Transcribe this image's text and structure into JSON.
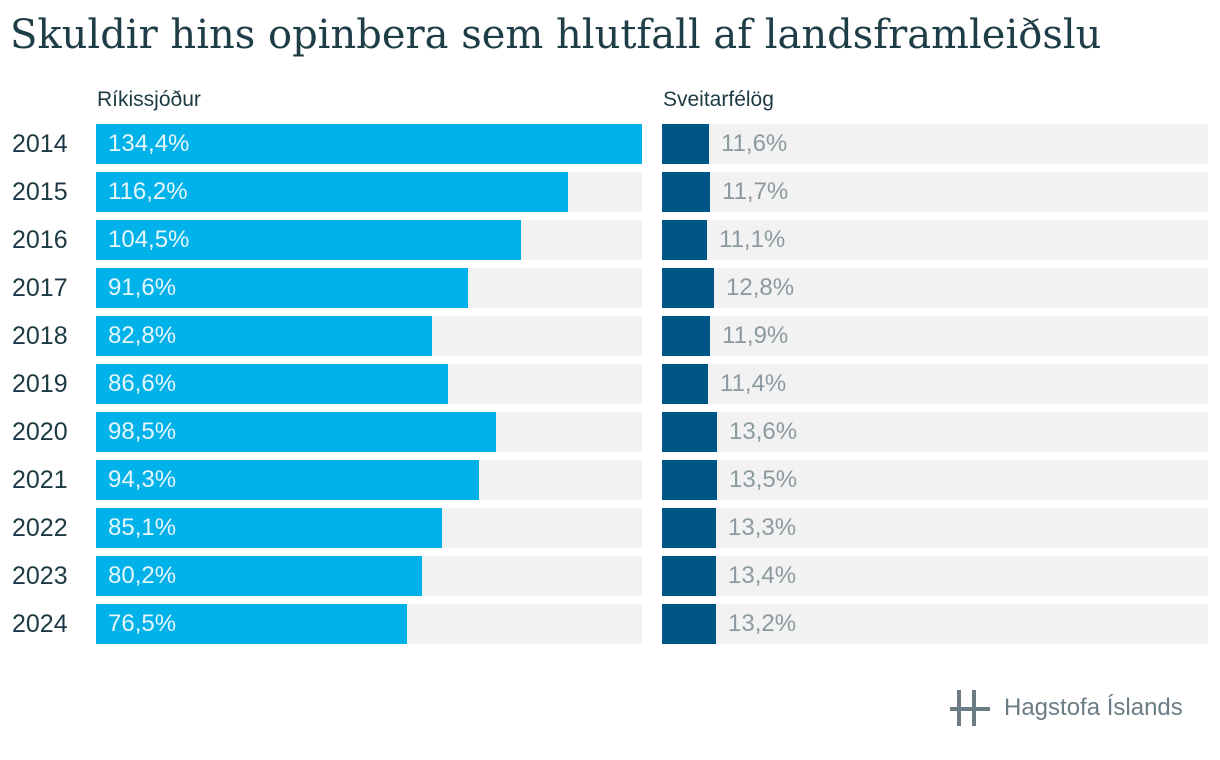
{
  "title": "Skuldir hins opinbera sem hlutfall af landsframleiðslu",
  "brand": "Hagstofa Íslands",
  "colors": {
    "state": "#00b2ea",
    "municipal": "#005587",
    "track": "#f2f2f2"
  },
  "chart_data": {
    "type": "bar",
    "orientation": "horizontal",
    "title": "Skuldir hins opinbera sem hlutfall af landsframleiðslu",
    "categories": [
      "2014",
      "2015",
      "2016",
      "2017",
      "2018",
      "2019",
      "2020",
      "2021",
      "2022",
      "2023",
      "2024"
    ],
    "series": [
      {
        "name": "Ríkissjóður",
        "values": [
          134.4,
          116.2,
          104.5,
          91.6,
          82.8,
          86.6,
          98.5,
          94.3,
          85.1,
          80.2,
          76.5
        ],
        "labels": [
          "134,4%",
          "116,2%",
          "104,5%",
          "91,6%",
          "82,8%",
          "86,6%",
          "98,5%",
          "94,3%",
          "85,1%",
          "80,2%",
          "76,5%"
        ],
        "xlim": [
          0,
          134.4
        ]
      },
      {
        "name": "Sveitarfélög",
        "values": [
          11.6,
          11.7,
          11.1,
          12.8,
          11.9,
          11.4,
          13.6,
          13.5,
          13.3,
          13.4,
          13.2
        ],
        "labels": [
          "11,6%",
          "11,7%",
          "11,1%",
          "12,8%",
          "11,9%",
          "11,4%",
          "13,6%",
          "13,5%",
          "13,3%",
          "13,4%",
          "13,2%"
        ],
        "xlim": [
          0,
          134.4
        ]
      }
    ],
    "grid": false,
    "legend": "none"
  }
}
